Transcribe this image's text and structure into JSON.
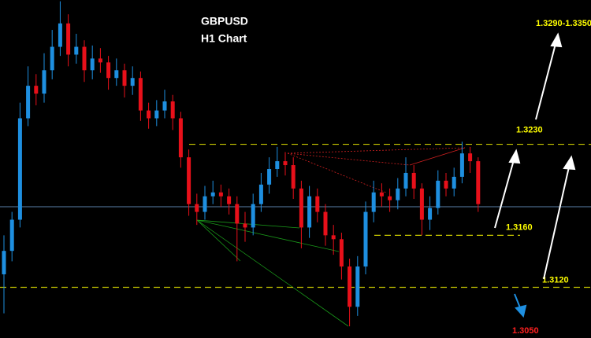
{
  "chart_data": {
    "type": "candlestick",
    "title": "GBPUSD",
    "subtitle": "H1 Chart",
    "ylim": [
      1.3081,
      1.3341
    ],
    "up_color": "#1e8fe0",
    "down_color": "#e8101a",
    "open": [
      1.313,
      1.3148,
      1.3172,
      1.325,
      1.3275,
      1.3269,
      1.3287,
      1.3305,
      1.3323,
      1.3299,
      1.3305,
      1.3287,
      1.3296,
      1.3293,
      1.3281,
      1.3287,
      1.3275,
      1.3281,
      1.3256,
      1.325,
      1.3256,
      1.3263,
      1.325,
      1.322,
      1.3184,
      1.3178,
      1.319,
      1.3193,
      1.319,
      1.3184,
      1.3169,
      1.3166,
      1.3184,
      1.3199,
      1.3211,
      1.3217,
      1.3214,
      1.3196,
      1.3166,
      1.319,
      1.3178,
      1.316,
      1.3157,
      1.3136,
      1.3105,
      1.3136,
      1.3178,
      1.3193,
      1.319,
      1.3187,
      1.3196,
      1.3208,
      1.3196,
      1.3172,
      1.3181,
      1.3202,
      1.3196,
      1.3205,
      1.3223,
      1.3217
    ],
    "high": [
      1.316,
      1.3178,
      1.3262,
      1.329,
      1.3284,
      1.33,
      1.3318,
      1.334,
      1.333,
      1.3315,
      1.331,
      1.3306,
      1.3304,
      1.3298,
      1.3296,
      1.3292,
      1.329,
      1.3286,
      1.3262,
      1.3264,
      1.3272,
      1.3268,
      1.3255,
      1.3226,
      1.3192,
      1.3198,
      1.3202,
      1.3199,
      1.3196,
      1.319,
      1.3178,
      1.3192,
      1.3208,
      1.322,
      1.3228,
      1.3224,
      1.322,
      1.3202,
      1.3198,
      1.3196,
      1.3184,
      1.3168,
      1.3162,
      1.3142,
      1.3144,
      1.3186,
      1.3202,
      1.32,
      1.3196,
      1.3204,
      1.322,
      1.3214,
      1.32,
      1.319,
      1.321,
      1.3208,
      1.3212,
      1.3232,
      1.3228,
      1.322
    ],
    "low": [
      1.31,
      1.314,
      1.3166,
      1.3244,
      1.326,
      1.3262,
      1.328,
      1.3298,
      1.329,
      1.3292,
      1.3278,
      1.328,
      1.3285,
      1.3272,
      1.3275,
      1.3266,
      1.3268,
      1.3248,
      1.3242,
      1.3244,
      1.325,
      1.3241,
      1.3212,
      1.3175,
      1.3168,
      1.3172,
      1.3184,
      1.3182,
      1.3176,
      1.314,
      1.3155,
      1.316,
      1.3178,
      1.3192,
      1.3205,
      1.3206,
      1.3188,
      1.315,
      1.3158,
      1.317,
      1.3152,
      1.3145,
      1.3126,
      1.309,
      1.3098,
      1.313,
      1.317,
      1.3182,
      1.3178,
      1.318,
      1.319,
      1.3188,
      1.316,
      1.3164,
      1.3176,
      1.319,
      1.319,
      1.32,
      1.3208,
      1.3178
    ],
    "close": [
      1.3148,
      1.3172,
      1.325,
      1.3275,
      1.3269,
      1.3287,
      1.3305,
      1.3323,
      1.3299,
      1.3305,
      1.3287,
      1.3296,
      1.3293,
      1.3281,
      1.3287,
      1.3275,
      1.3281,
      1.3256,
      1.325,
      1.3256,
      1.3263,
      1.325,
      1.322,
      1.3184,
      1.3178,
      1.319,
      1.3193,
      1.319,
      1.3184,
      1.3169,
      1.3166,
      1.3184,
      1.3199,
      1.3211,
      1.3217,
      1.3214,
      1.3196,
      1.3166,
      1.319,
      1.3178,
      1.316,
      1.3157,
      1.3136,
      1.3105,
      1.3136,
      1.3178,
      1.3193,
      1.319,
      1.3187,
      1.3196,
      1.3208,
      1.3196,
      1.3172,
      1.3181,
      1.3202,
      1.3196,
      1.3205,
      1.3223,
      1.3217,
      1.3184
    ],
    "current_price": 1.3182,
    "current_color": "#5a7fa8",
    "level_color": "#c8c800",
    "label_color": "#ffff00",
    "levels": [
      {
        "value": 1.323,
        "label": "1.3230"
      },
      {
        "value": 1.316,
        "label": "1.3160"
      },
      {
        "value": 1.312,
        "label": "1.3120"
      }
    ],
    "target_up": "1.3290-1.3350",
    "target_down": {
      "value": 1.305,
      "label": "1.3050"
    },
    "target_down_color": "#ff2020"
  }
}
